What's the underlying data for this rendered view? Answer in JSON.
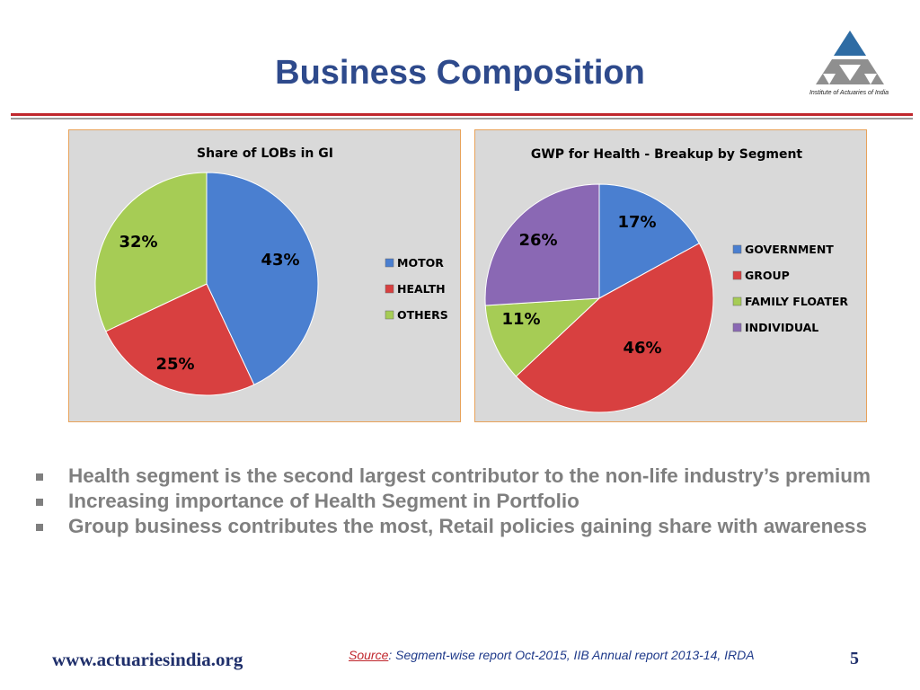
{
  "slide": {
    "title": "Business Composition",
    "logo_caption": "Institute of Actuaries of India",
    "bullets": [
      "Health segment is the second largest contributor to the non-life industry’s premium",
      "Increasing importance of Health Segment in Portfolio",
      "Group business contributes the most, Retail policies gaining share with awareness"
    ],
    "footer_url": "www.actuariesindia.org",
    "source_label": "Source",
    "source_text": ": Segment-wise report Oct-2015, IIB   Annual report 2013-14, IRDA",
    "page_number": "5"
  },
  "colors": {
    "blue": "#4a7fd0",
    "red": "#d84040",
    "green": "#a6cc55",
    "purple": "#8a68b4",
    "title_blue": "#2e4a8c",
    "rule_red": "#c0272d",
    "chart_bg": "#d9d9d9"
  },
  "chart_data": [
    {
      "type": "pie",
      "title": "Share of LOBs in GI",
      "categories": [
        "MOTOR",
        "HEALTH",
        "OTHERS"
      ],
      "values": [
        43,
        25,
        32
      ],
      "labels": [
        "43%",
        "25%",
        "32%"
      ],
      "colors": [
        "#4a7fd0",
        "#d84040",
        "#a6cc55"
      ],
      "legend_position": "right"
    },
    {
      "type": "pie",
      "title": "GWP for Health - Breakup by Segment",
      "categories": [
        "GOVERNMENT",
        "GROUP",
        "FAMILY FLOATER",
        "INDIVIDUAL"
      ],
      "values": [
        17,
        46,
        11,
        26
      ],
      "labels": [
        "17%",
        "46%",
        "11%",
        "26%"
      ],
      "colors": [
        "#4a7fd0",
        "#d84040",
        "#a6cc55",
        "#8a68b4"
      ],
      "legend_position": "right"
    }
  ]
}
